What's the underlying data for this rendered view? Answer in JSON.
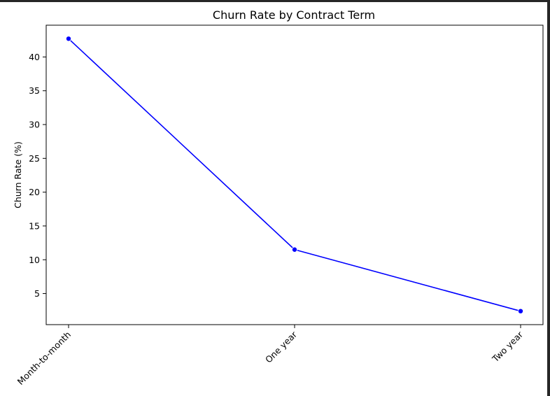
{
  "chart_data": {
    "type": "line",
    "title": "Churn Rate by Contract Term",
    "xlabel": "",
    "ylabel": "Churn Rate (%)",
    "categories": [
      "Month-to-month",
      "One year",
      "Two year"
    ],
    "series": [
      {
        "values": [
          42.7,
          11.5,
          2.4
        ],
        "color": "#0000ff",
        "marker": "circle"
      }
    ],
    "ylim": [
      0.4,
      44.7
    ],
    "yticks": [
      5,
      10,
      15,
      20,
      25,
      30,
      35,
      40
    ],
    "grid": false,
    "legend": "none",
    "x_tick_rotation": 45
  }
}
